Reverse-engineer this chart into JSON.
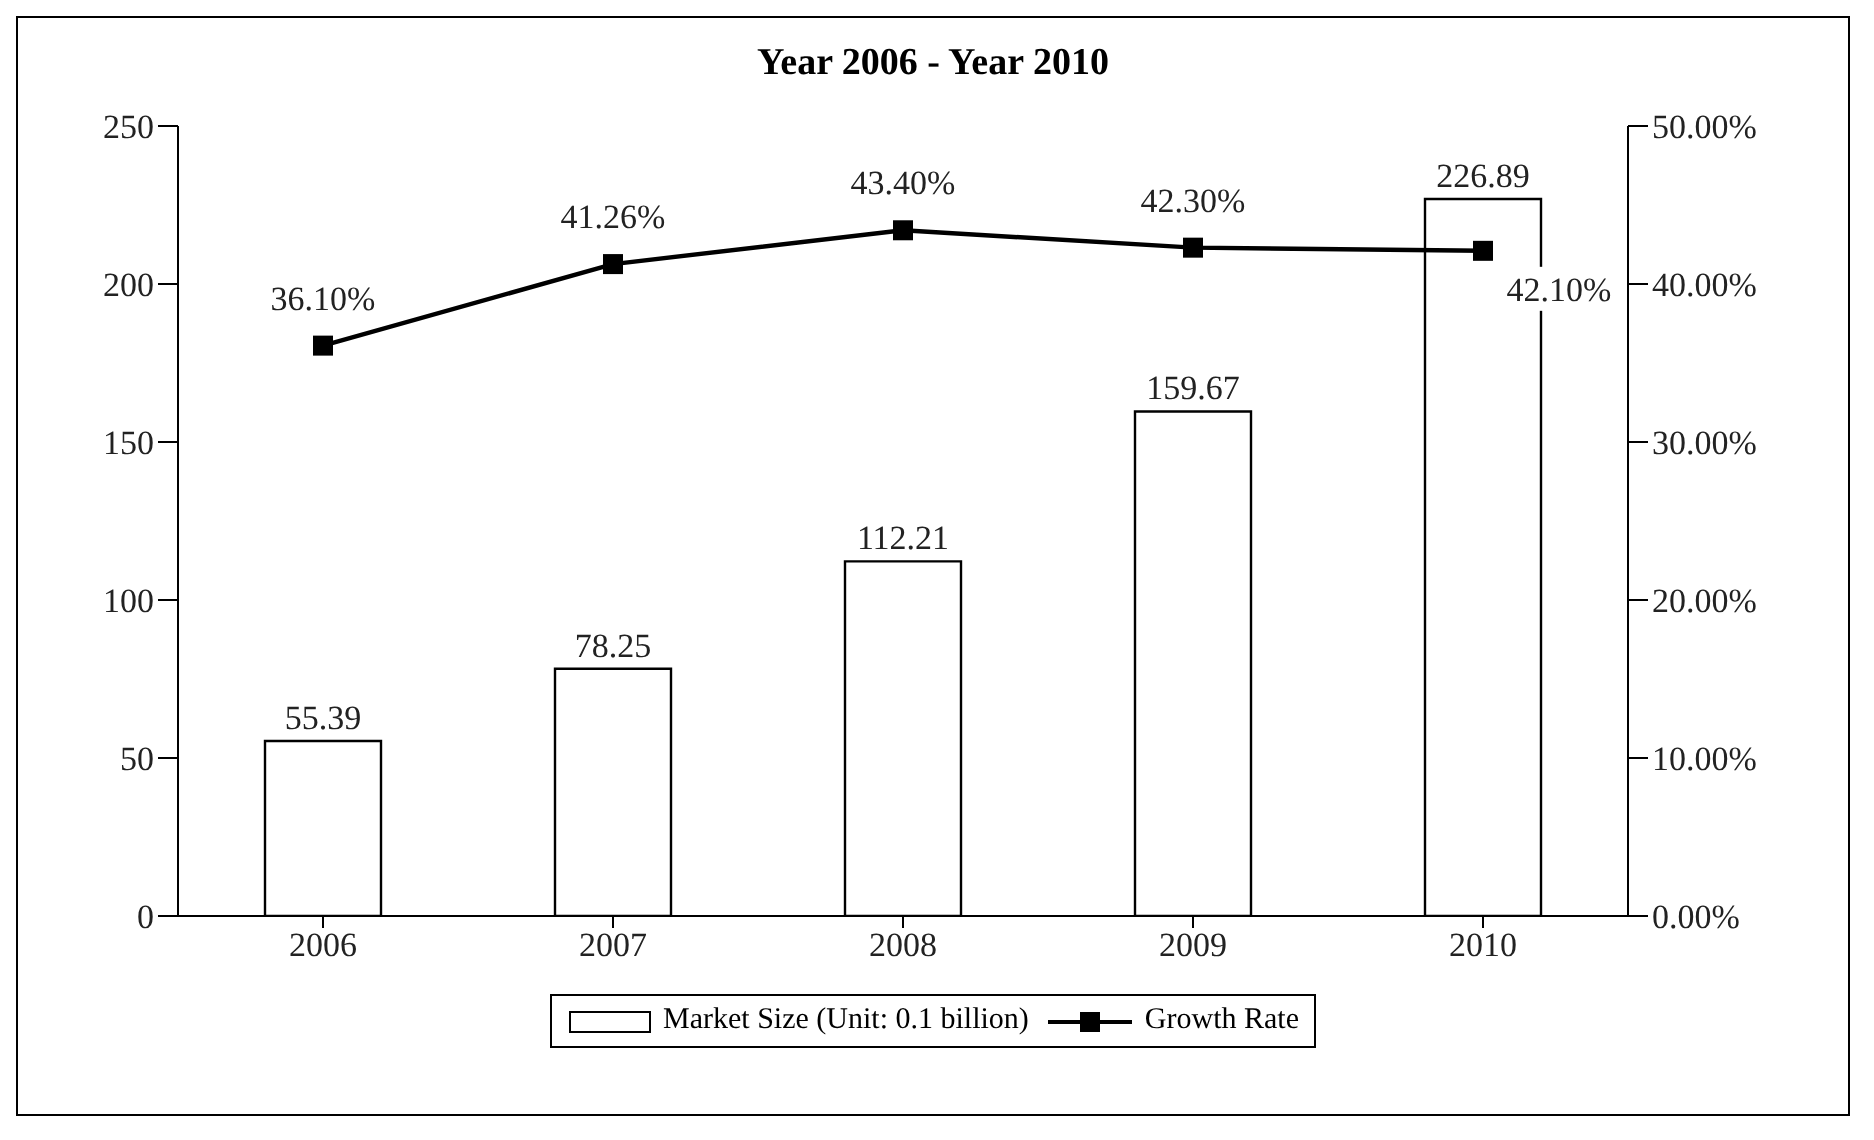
{
  "chart_data": {
    "type": "bar",
    "title": "Year 2006 - Year 2010",
    "categories": [
      "2006",
      "2007",
      "2008",
      "2009",
      "2010"
    ],
    "series": [
      {
        "name": "Market Size (Unit: 0.1 billion)",
        "color": "#ffffff",
        "values": [
          55.39,
          78.25,
          112.21,
          159.67,
          226.89
        ],
        "value_labels": [
          "55.39",
          "78.25",
          "112.21",
          "159.67",
          "226.89"
        ]
      },
      {
        "name": "Growth Rate",
        "type": "line",
        "axis": "y2",
        "color": "#000000",
        "marker": "square",
        "values": [
          36.1,
          41.26,
          43.4,
          42.3,
          42.1
        ],
        "value_labels": [
          "36.10%",
          "41.26%",
          "43.40%",
          "42.30%",
          "42.10%"
        ]
      }
    ],
    "ylim": [
      0,
      250
    ],
    "yticks": [
      0,
      50,
      100,
      150,
      200,
      250
    ],
    "y2lim": [
      0,
      50
    ],
    "y2ticks": [
      {
        "value": 0,
        "label": "0.00%"
      },
      {
        "value": 10,
        "label": "10.00%"
      },
      {
        "value": 20,
        "label": "20.00%"
      },
      {
        "value": 30,
        "label": "30.00%"
      },
      {
        "value": 40,
        "label": "40.00%"
      },
      {
        "value": 50,
        "label": "50.00%"
      }
    ],
    "grid": false,
    "legend": "bottom"
  }
}
